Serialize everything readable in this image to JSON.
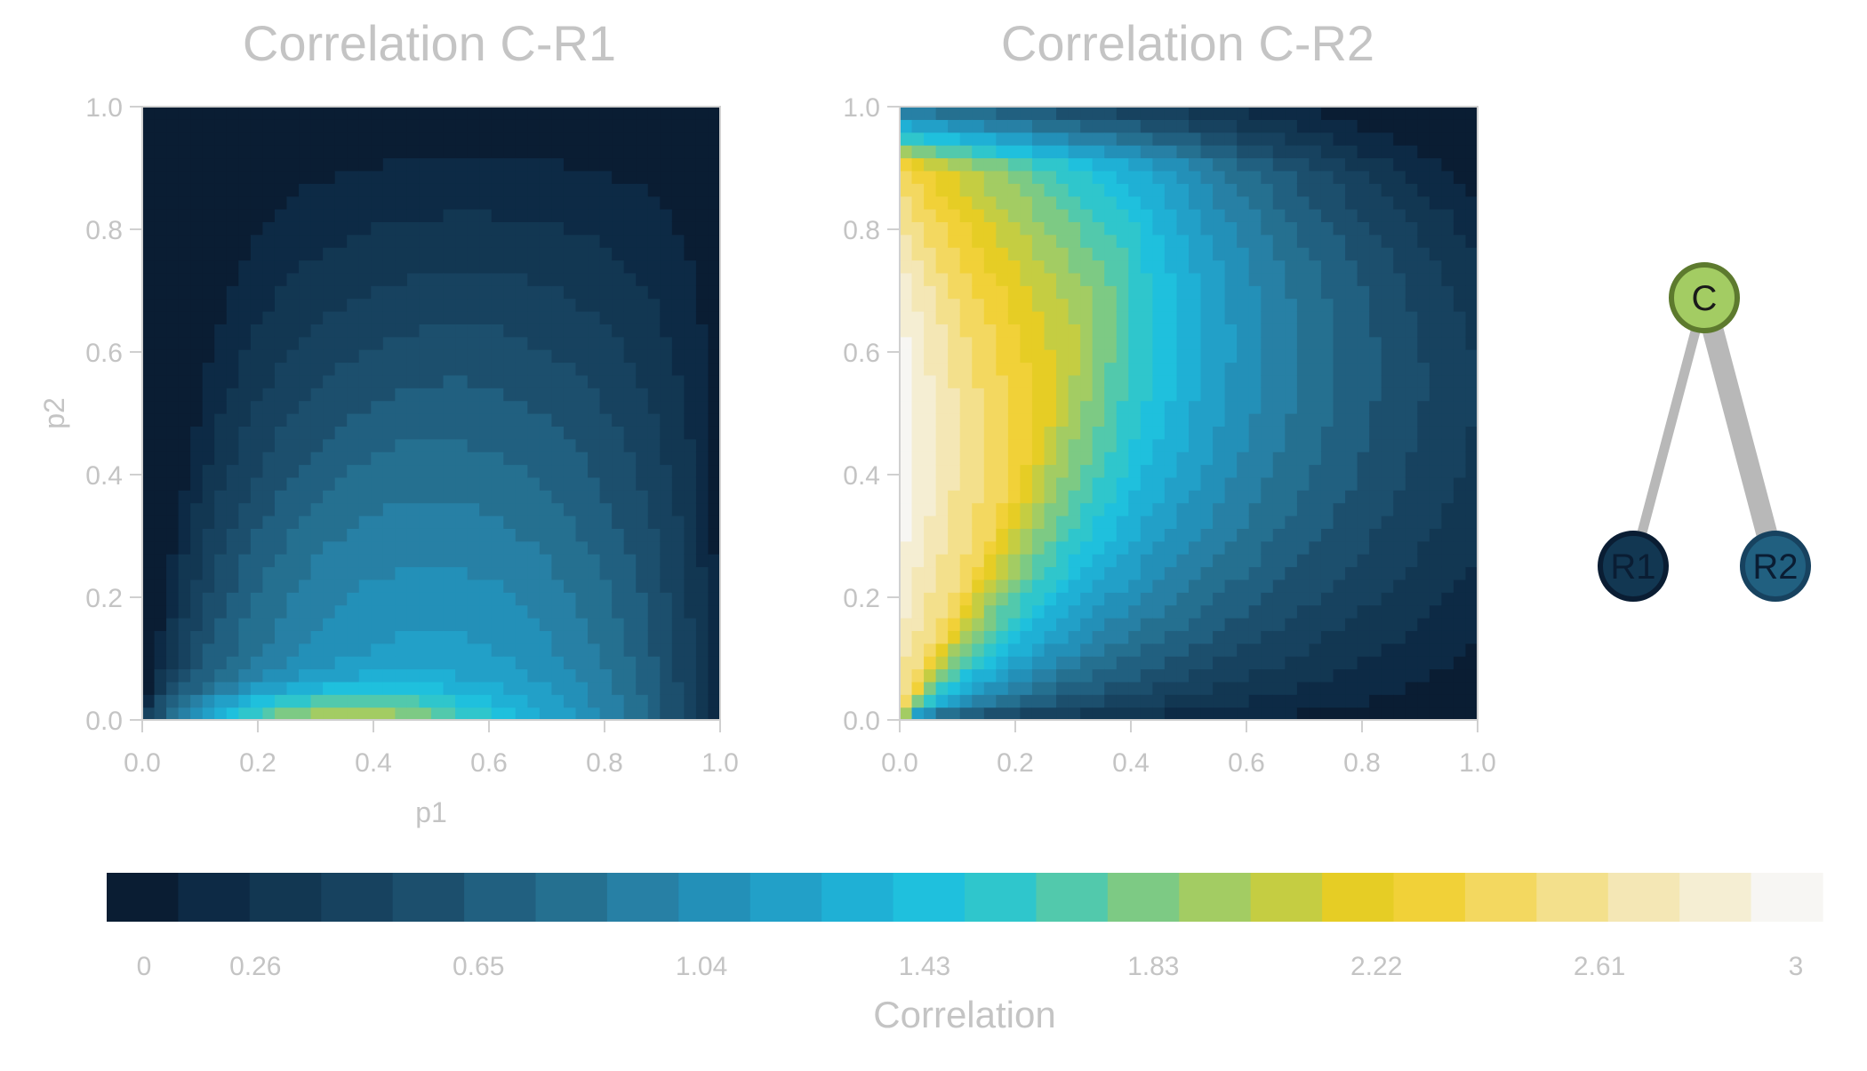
{
  "chart_data": [
    {
      "type": "heatmap",
      "title": "Correlation C-R1",
      "xlabel": "p1",
      "ylabel": "p2",
      "xlim": [
        0,
        1
      ],
      "ylim": [
        0,
        1
      ],
      "xticks": [
        "0.0",
        "0.2",
        "0.4",
        "0.6",
        "0.8",
        "1.0"
      ],
      "yticks": [
        "0.0",
        "0.2",
        "0.4",
        "0.6",
        "0.8",
        "1.0"
      ],
      "grid": 48,
      "peak": {
        "p1": 0.3,
        "p2": 0.0,
        "value": 1.95
      }
    },
    {
      "type": "heatmap",
      "title": "Correlation C-R2",
      "xlabel": "",
      "ylabel": "",
      "xlim": [
        0,
        1
      ],
      "ylim": [
        0,
        1
      ],
      "xticks": [
        "0.0",
        "0.2",
        "0.4",
        "0.6",
        "0.8",
        "1.0"
      ],
      "yticks": [
        "0.0",
        "0.2",
        "0.4",
        "0.6",
        "0.8",
        "1.0"
      ],
      "grid": 48,
      "peak": {
        "p1": 0.0,
        "p2": 0.45,
        "value": 3.0
      }
    }
  ],
  "colorbar": {
    "label": "Correlation",
    "min": 0,
    "max": 3,
    "tick_labels": [
      "0",
      "0.26",
      "0.65",
      "1.04",
      "1.43",
      "1.83",
      "2.22",
      "2.61",
      "3"
    ],
    "tick_values": [
      0,
      0.26,
      0.65,
      1.04,
      1.43,
      1.83,
      2.22,
      2.61,
      3
    ],
    "colors": [
      "#0a1d33",
      "#0d2a45",
      "#123752",
      "#17425f",
      "#1c4f6d",
      "#216080",
      "#257090",
      "#2780a5",
      "#2390b8",
      "#22a0c8",
      "#1fb0d5",
      "#1fc0dd",
      "#2fc6cc",
      "#52c9ac",
      "#7dca84",
      "#a3cc63",
      "#c5cd42",
      "#e6cd25",
      "#f1d138",
      "#f3d860",
      "#f3e08c",
      "#f4e7b5",
      "#f5eed3",
      "#f7f6f3"
    ]
  },
  "graph": {
    "nodes": [
      {
        "id": "C",
        "label": "C",
        "fill": "#a3cc63",
        "stroke": "#5d7a2e"
      },
      {
        "id": "R1",
        "label": "R1",
        "fill": "#123752",
        "stroke": "#0a1d33"
      },
      {
        "id": "R2",
        "label": "R2",
        "fill": "#216080",
        "stroke": "#17425f"
      }
    ],
    "edges": [
      {
        "from": "C",
        "to": "R1",
        "weight": 1
      },
      {
        "from": "C",
        "to": "R2",
        "weight": 2
      }
    ],
    "edge_color": "#b8b8b8"
  }
}
